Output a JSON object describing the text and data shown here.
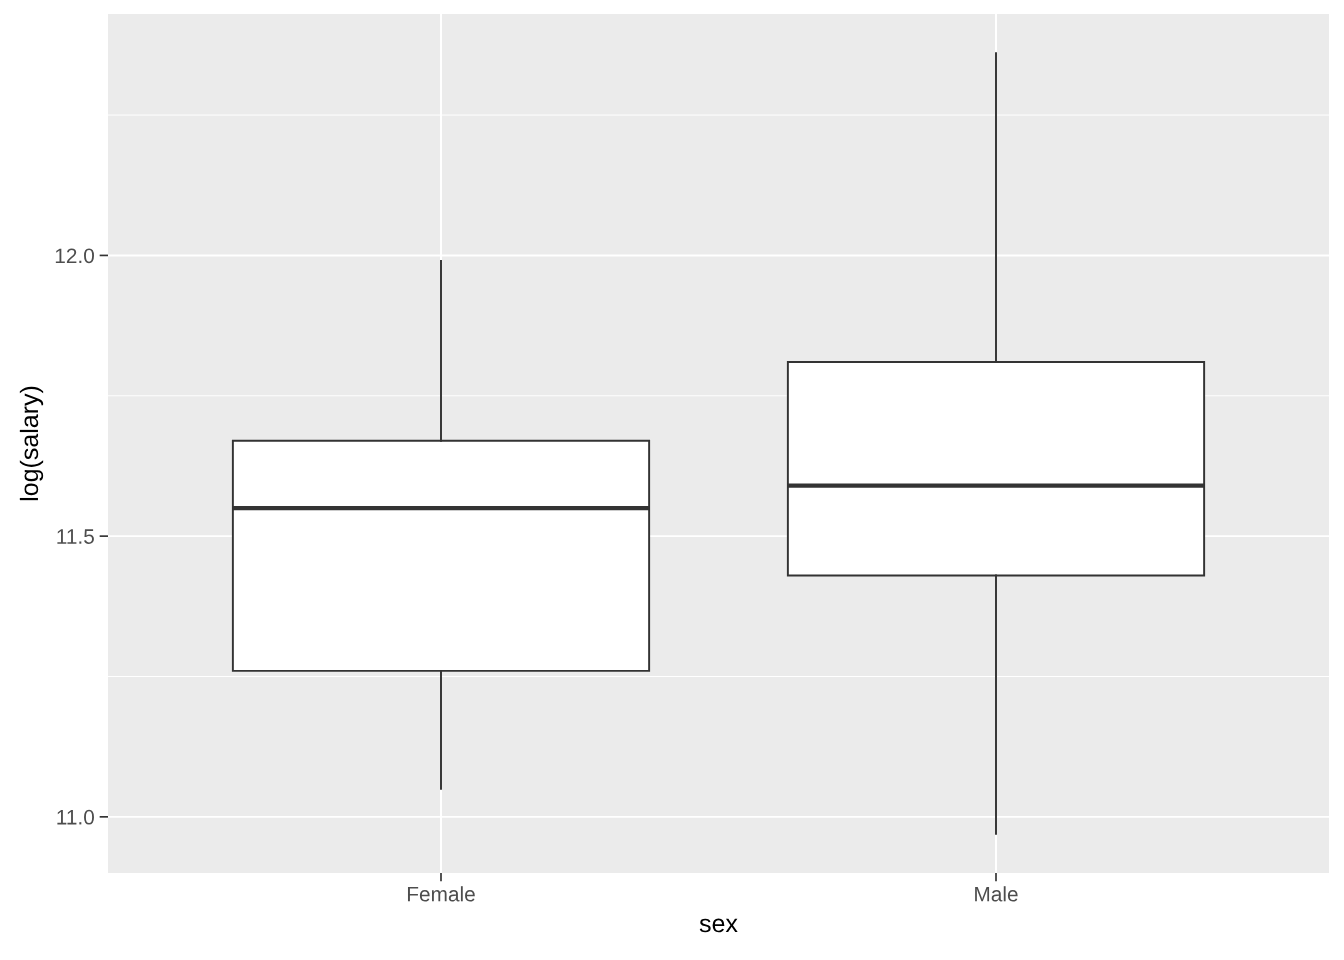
{
  "chart_data": {
    "type": "box",
    "xlabel": "sex",
    "ylabel": "log(salary)",
    "categories": [
      "Female",
      "Male"
    ],
    "boxes": [
      {
        "low": 11.05,
        "q1": 11.26,
        "median": 11.55,
        "q3": 11.67,
        "high": 11.99
      },
      {
        "low": 10.97,
        "q1": 11.43,
        "median": 11.59,
        "q3": 11.81,
        "high": 12.36
      }
    ],
    "ylim": [
      10.9,
      12.43
    ],
    "yticks": [
      {
        "value": 11,
        "label": "11.0"
      },
      {
        "value": 11.5,
        "label": "11.5"
      },
      {
        "value": 12,
        "label": "12.0"
      }
    ],
    "grid": true
  }
}
